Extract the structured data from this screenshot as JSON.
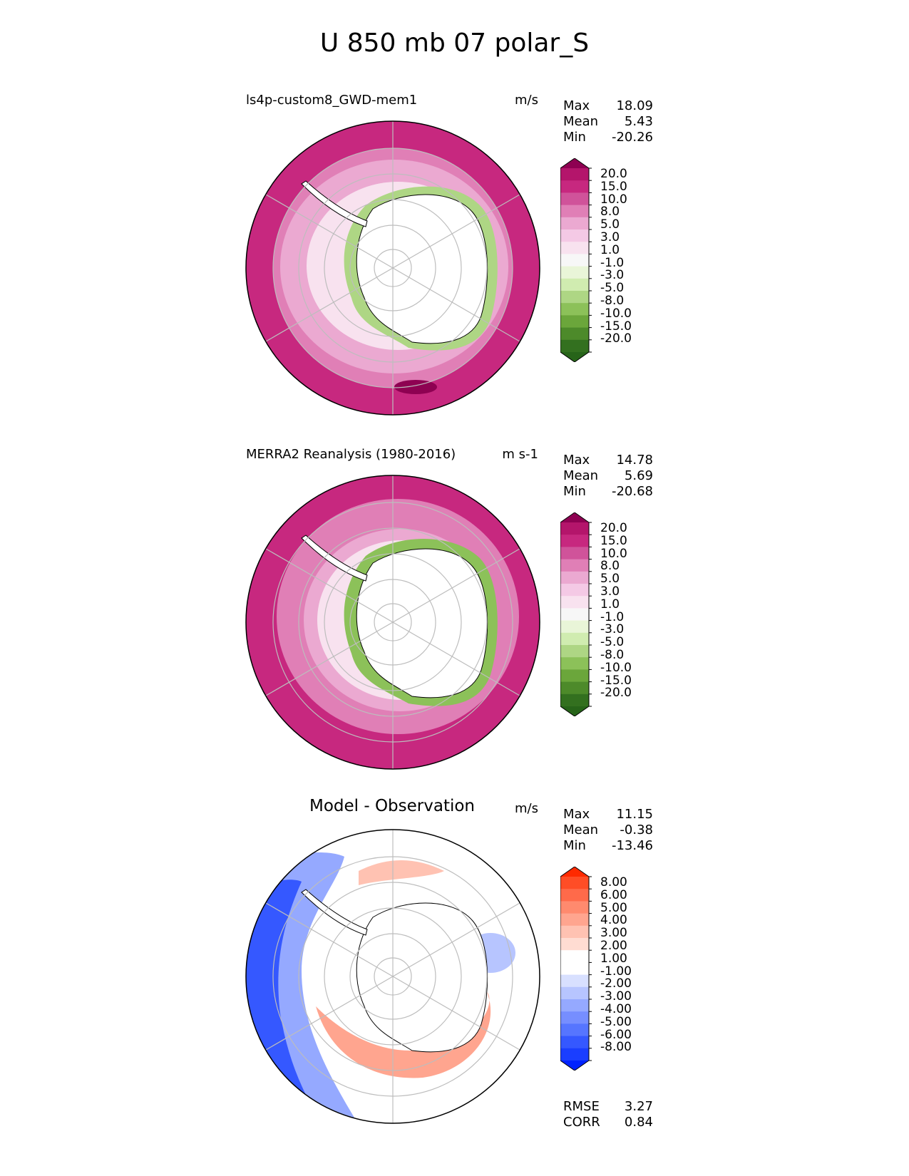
{
  "figure_title": "U 850 mb 07 polar_S",
  "panels": [
    {
      "title": "ls4p-custom8_GWD-mem1",
      "units": "m/s",
      "stats": {
        "max_label": "Max",
        "max": "18.09",
        "mean_label": "Mean",
        "mean": "5.43",
        "min_label": "Min",
        "min": "-20.26"
      },
      "colorbar_labels": [
        "20.0",
        "15.0",
        "10.0",
        "8.0",
        "5.0",
        "3.0",
        "1.0",
        "-1.0",
        "-3.0",
        "-5.0",
        "-8.0",
        "-10.0",
        "-15.0",
        "-20.0"
      ],
      "colorbar_colors": [
        "#8e0152",
        "#b4156b",
        "#c7287f",
        "#d0539a",
        "#e07fb6",
        "#eba9d1",
        "#f4c9e5",
        "#f8e2ef",
        "#f7f7f7",
        "#e9f5d8",
        "#d0ecb0",
        "#aed684",
        "#8cc159",
        "#6ba63b",
        "#4d8a2a",
        "#33701f",
        "#276419"
      ]
    },
    {
      "title": "MERRA2 Reanalysis (1980-2016)",
      "units": "m s-1",
      "stats": {
        "max_label": "Max",
        "max": "14.78",
        "mean_label": "Mean",
        "mean": "5.69",
        "min_label": "Min",
        "min": "-20.68"
      },
      "colorbar_labels": [
        "20.0",
        "15.0",
        "10.0",
        "8.0",
        "5.0",
        "3.0",
        "1.0",
        "-1.0",
        "-3.0",
        "-5.0",
        "-8.0",
        "-10.0",
        "-15.0",
        "-20.0"
      ],
      "colorbar_colors": [
        "#8e0152",
        "#b4156b",
        "#c7287f",
        "#d0539a",
        "#e07fb6",
        "#eba9d1",
        "#f4c9e5",
        "#f8e2ef",
        "#f7f7f7",
        "#e9f5d8",
        "#d0ecb0",
        "#aed684",
        "#8cc159",
        "#6ba63b",
        "#4d8a2a",
        "#33701f",
        "#276419"
      ]
    },
    {
      "title": "Model - Observation",
      "units": "m/s",
      "stats": {
        "max_label": "Max",
        "max": "11.15",
        "mean_label": "Mean",
        "mean": "-0.38",
        "min_label": "Min",
        "min": "-13.46"
      },
      "colorbar_labels": [
        "8.00",
        "6.00",
        "5.00",
        "4.00",
        "3.00",
        "2.00",
        "1.00",
        "-1.00",
        "-2.00",
        "-3.00",
        "-4.00",
        "-5.00",
        "-6.00",
        "-8.00"
      ],
      "colorbar_colors": [
        "#ff2a00",
        "#ff4d26",
        "#ff6a4a",
        "#ff8a6e",
        "#ffa58f",
        "#ffc2b2",
        "#ffdcd2",
        "#ffffff",
        "#ffffff",
        "#d8e0ff",
        "#b7c5ff",
        "#95a9ff",
        "#768eff",
        "#5675ff",
        "#3558ff",
        "#1a3eff",
        "#0022ff"
      ],
      "footer": {
        "rmse_label": "RMSE",
        "rmse": "3.27",
        "corr_label": "CORR",
        "corr": "0.84"
      }
    }
  ],
  "colors": {
    "positive_strong": "#c7287f",
    "negative_strong": "#276419",
    "diff_red": "#ff2a00",
    "diff_blue": "#0022ff",
    "grid": "#bdbdbd"
  }
}
